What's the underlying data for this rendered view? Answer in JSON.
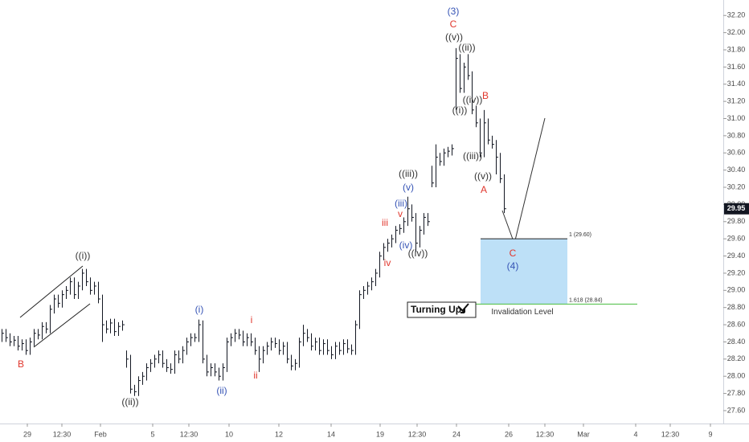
{
  "chart_data": {
    "type": "ohlc",
    "color": "#131722",
    "xlim": [
      0,
      180
    ],
    "ylim": [
      27.45,
      32.38
    ],
    "xticks": [
      {
        "value": 6.4,
        "label": "29"
      },
      {
        "value": 15,
        "label": "12:30"
      },
      {
        "value": 24.6,
        "label": "Feb"
      },
      {
        "value": 37.6,
        "label": "5"
      },
      {
        "value": 46.6,
        "label": "12:30"
      },
      {
        "value": 56.6,
        "label": "10"
      },
      {
        "value": 69,
        "label": "12"
      },
      {
        "value": 82,
        "label": "14"
      },
      {
        "value": 94.2,
        "label": "19"
      },
      {
        "value": 103.4,
        "label": "12:30"
      },
      {
        "value": 113.2,
        "label": "24"
      },
      {
        "value": 126.2,
        "label": "26"
      },
      {
        "value": 135.2,
        "label": "12:30"
      },
      {
        "value": 144.8,
        "label": "Mar"
      },
      {
        "value": 157.8,
        "label": "4"
      },
      {
        "value": 166.4,
        "label": "12:30"
      },
      {
        "value": 176.4,
        "label": "9"
      }
    ],
    "yticks": [
      {
        "value": 27.6,
        "label": "27.60"
      },
      {
        "value": 27.8,
        "label": "27.80"
      },
      {
        "value": 28.0,
        "label": "28.00"
      },
      {
        "value": 28.2,
        "label": "28.20"
      },
      {
        "value": 28.4,
        "label": "28.40"
      },
      {
        "value": 28.6,
        "label": "28.60"
      },
      {
        "value": 28.8,
        "label": "28.80"
      },
      {
        "value": 29.0,
        "label": "29.00"
      },
      {
        "value": 29.2,
        "label": "29.20"
      },
      {
        "value": 29.4,
        "label": "29.40"
      },
      {
        "value": 29.6,
        "label": "29.60"
      },
      {
        "value": 29.8,
        "label": "29.80"
      },
      {
        "value": 30.0,
        "label": "30.00"
      },
      {
        "value": 30.2,
        "label": "30.20"
      },
      {
        "value": 30.4,
        "label": "30.40"
      },
      {
        "value": 30.6,
        "label": "30.60"
      },
      {
        "value": 30.8,
        "label": "30.80"
      },
      {
        "value": 31.0,
        "label": "31.00"
      },
      {
        "value": 31.2,
        "label": "31.20"
      },
      {
        "value": 31.4,
        "label": "31.40"
      },
      {
        "value": 31.6,
        "label": "31.60"
      },
      {
        "value": 31.8,
        "label": "31.80"
      },
      {
        "value": 32.0,
        "label": "32.00"
      },
      {
        "value": 32.2,
        "label": "32.20"
      }
    ],
    "high": [
      28.55,
      28.55,
      28.5,
      28.47,
      28.47,
      28.43,
      28.43,
      28.45,
      28.55,
      28.55,
      28.63,
      28.63,
      28.83,
      28.95,
      28.95,
      29.0,
      29.05,
      29.15,
      29.15,
      29.1,
      29.25,
      29.25,
      29.15,
      29.1,
      29.1,
      28.95,
      28.65,
      28.67,
      28.67,
      28.63,
      28.65,
      28.3,
      28.25,
      27.9,
      28.0,
      28.05,
      28.15,
      28.2,
      28.25,
      28.3,
      28.3,
      28.2,
      28.15,
      28.3,
      28.3,
      28.35,
      28.45,
      28.5,
      28.5,
      28.66,
      28.65,
      28.25,
      28.15,
      28.15,
      28.1,
      28.15,
      28.45,
      28.5,
      28.55,
      28.55,
      28.53,
      28.5,
      28.5,
      28.45,
      28.35,
      28.35,
      28.4,
      28.45,
      28.45,
      28.43,
      28.4,
      28.4,
      28.25,
      28.2,
      28.45,
      28.6,
      28.55,
      28.5,
      28.45,
      28.45,
      28.43,
      28.43,
      28.35,
      28.4,
      28.4,
      28.43,
      28.43,
      28.37,
      28.65,
      29.0,
      29.05,
      29.1,
      29.15,
      29.25,
      29.45,
      29.55,
      29.6,
      29.65,
      29.75,
      29.77,
      29.85,
      30.09,
      30.0,
      29.9,
      29.75,
      29.9,
      29.9,
      30.45,
      30.7,
      30.6,
      30.65,
      30.67,
      30.7,
      31.82,
      31.75,
      31.65,
      31.75,
      31.55,
      31.15,
      31.0,
      31.1,
      31.0,
      30.8,
      30.75,
      30.6,
      30.35
    ],
    "low": [
      28.4,
      28.4,
      28.35,
      28.35,
      28.3,
      28.3,
      28.25,
      28.25,
      28.35,
      28.43,
      28.43,
      28.5,
      28.5,
      28.73,
      28.8,
      28.8,
      28.9,
      28.95,
      28.9,
      28.9,
      29.0,
      29.05,
      28.95,
      28.95,
      28.85,
      28.4,
      28.5,
      28.5,
      28.47,
      28.47,
      28.53,
      28.1,
      27.8,
      27.77,
      27.77,
      27.9,
      27.95,
      28.05,
      28.1,
      28.15,
      28.1,
      28.05,
      28.03,
      28.03,
      28.15,
      28.15,
      28.25,
      28.35,
      28.4,
      28.4,
      28.15,
      28.0,
      28.0,
      28.0,
      27.95,
      27.95,
      28.05,
      28.35,
      28.4,
      28.43,
      28.35,
      28.35,
      28.35,
      28.25,
      28.05,
      28.15,
      28.25,
      28.3,
      28.33,
      28.25,
      28.25,
      28.15,
      28.07,
      28.07,
      28.1,
      28.35,
      28.4,
      28.3,
      28.3,
      28.25,
      28.25,
      28.25,
      28.2,
      28.2,
      28.25,
      28.25,
      28.27,
      28.25,
      28.25,
      28.55,
      28.9,
      28.95,
      29.0,
      29.05,
      29.15,
      29.35,
      29.45,
      29.5,
      29.55,
      29.65,
      29.67,
      29.75,
      29.8,
      29.45,
      29.5,
      29.65,
      29.75,
      30.2,
      30.2,
      30.45,
      30.45,
      30.55,
      30.57,
      31.1,
      31.3,
      31.3,
      31.45,
      31.05,
      30.9,
      30.55,
      30.55,
      30.7,
      30.65,
      30.35,
      30.25,
      29.9
    ],
    "close": [
      28.5,
      28.45,
      28.4,
      28.42,
      28.35,
      28.38,
      28.3,
      28.4,
      28.5,
      28.48,
      28.58,
      28.55,
      28.78,
      28.9,
      28.85,
      28.95,
      29.0,
      29.1,
      28.95,
      29.05,
      29.2,
      29.1,
      29.0,
      29.05,
      28.9,
      28.6,
      28.55,
      28.62,
      28.52,
      28.58,
      28.6,
      28.2,
      27.85,
      27.82,
      27.95,
      28.0,
      28.1,
      28.15,
      28.2,
      28.25,
      28.15,
      28.1,
      28.08,
      28.25,
      28.2,
      28.3,
      28.4,
      28.45,
      28.45,
      28.6,
      28.2,
      28.05,
      28.1,
      28.05,
      28.0,
      28.1,
      28.4,
      28.45,
      28.5,
      28.48,
      28.4,
      28.45,
      28.4,
      28.3,
      28.2,
      28.3,
      28.35,
      28.4,
      28.38,
      28.3,
      28.35,
      28.2,
      28.12,
      28.15,
      28.4,
      28.5,
      28.45,
      28.35,
      28.4,
      28.3,
      28.38,
      28.3,
      28.25,
      28.35,
      28.3,
      28.38,
      28.32,
      28.3,
      28.6,
      28.95,
      29.0,
      29.05,
      29.1,
      29.2,
      29.4,
      29.5,
      29.55,
      29.6,
      29.7,
      29.72,
      29.8,
      29.95,
      29.85,
      29.55,
      29.7,
      29.85,
      29.8,
      30.25,
      30.55,
      30.5,
      30.6,
      30.62,
      30.65,
      31.7,
      31.35,
      31.6,
      31.5,
      31.1,
      30.95,
      30.6,
      30.95,
      30.75,
      30.7,
      30.55,
      30.3,
      29.95
    ],
    "last_price": 29.95,
    "levels": [
      {
        "value": 29.6,
        "label": "1 (29.60)"
      },
      {
        "value": 28.84,
        "label": "1.618 (28.84)"
      }
    ],
    "level_note": "Invalidation Level",
    "badge": "Turning Up",
    "annotations": [
      {
        "text": "(3)",
        "color": "#3553b5"
      },
      {
        "text": "C",
        "color": "#e0362c"
      },
      {
        "text": "((v))",
        "color": "#333333"
      },
      {
        "text": "((ii))",
        "color": "#333333"
      },
      {
        "text": "((iv))",
        "color": "#333333"
      },
      {
        "text": "B",
        "color": "#e0362c"
      },
      {
        "text": "((i))",
        "color": "#333333"
      },
      {
        "text": "((iii))",
        "color": "#333333"
      },
      {
        "text": "((v))",
        "color": "#333333"
      },
      {
        "text": "A",
        "color": "#e0362c"
      },
      {
        "text": "((iii))",
        "color": "#333333"
      },
      {
        "text": "(v)",
        "color": "#3553b5"
      },
      {
        "text": "(iii)",
        "color": "#3553b5"
      },
      {
        "text": "iii",
        "color": "#e0362c"
      },
      {
        "text": "v",
        "color": "#e0362c"
      },
      {
        "text": "iv",
        "color": "#e0362c"
      },
      {
        "text": "(iv)",
        "color": "#3553b5"
      },
      {
        "text": "((iv))",
        "color": "#333333"
      },
      {
        "text": "((i))",
        "color": "#333333"
      },
      {
        "text": "B",
        "color": "#e0362c"
      },
      {
        "text": "((ii))",
        "color": "#333333"
      },
      {
        "text": "(i)",
        "color": "#3553b5"
      },
      {
        "text": "(ii)",
        "color": "#3553b5"
      },
      {
        "text": "i",
        "color": "#e0362c"
      },
      {
        "text": "ii",
        "color": "#e0362c"
      },
      {
        "text": "C",
        "color": "#e0362c"
      },
      {
        "text": "(4)",
        "color": "#3553b5"
      }
    ]
  }
}
